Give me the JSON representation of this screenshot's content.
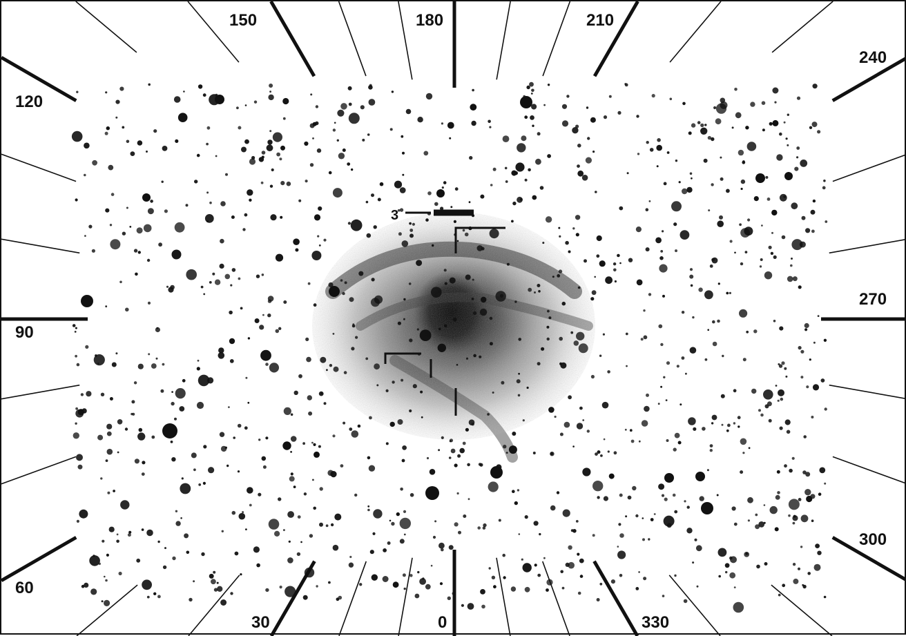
{
  "image": {
    "subject": "position-angle-annotated-star-field",
    "ink_color": "#111111",
    "nebula_color": "#555555",
    "background_color": "#ffffff"
  },
  "angle_labels": {
    "a0": "0",
    "a30": "30",
    "a60": "60",
    "a90": "90",
    "a120": "120",
    "a150": "150",
    "a180": "180",
    "a210": "210",
    "a240": "240",
    "a270": "270",
    "a300": "300",
    "a330": "330"
  },
  "marker_label": "3"
}
